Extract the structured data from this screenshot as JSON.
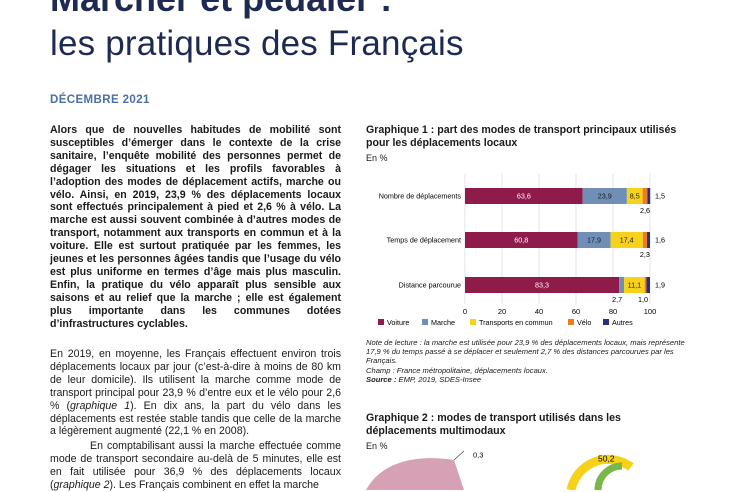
{
  "header": {
    "title_line1": "Marcher et pédaler :",
    "title_line2": "les pratiques des Français",
    "date": "DÉCEMBRE 2021"
  },
  "article": {
    "intro": "Alors que de nouvelles habitudes de mobilité sont susceptibles d’émerger dans le contexte de la crise sanitaire, l’enquête mobilité des personnes permet de dégager les situations et les profils favorables à l’adoption des modes de déplacement actifs, marche ou vélo. Ainsi, en 2019, 23,9 % des déplacements locaux sont effectués principalement à pied et 2,6 % à vélo. La marche est aussi souvent combinée à d’autres modes de transport, notamment aux transports en commun et à la voiture. Elle est surtout pratiquée par les femmes, les jeunes et les personnes âgées tandis que l’usage du vélo est plus uniforme en termes d’âge mais plus masculin. Enfin, la pratique du vélo apparaît plus sensible aux saisons et au relief que la marche ; elle est également plus importante dans les communes dotées d’infrastructures cyclables.",
    "p1_part1": "En 2019, en moyenne, les Français effectuent environ trois déplacements locaux par jour (c’est-à-dire à moins de 80 km de leur domicile). Ils utilisent la marche comme mode de transport principal pour 23,9 % d’entre eux et le vélo pour 2,6 % (",
    "p1_ref": "graphique 1",
    "p1_part2": "). En dix ans, la part du vélo dans les déplacements est restée stable tandis que celle de la marche a légèrement augmenté (22,1 % en 2008).",
    "p2_part1": "En comptabilisant aussi la marche effectuée comme mode de transport secondaire au-delà de 5 minutes, elle est en fait utilisée pour 36,9 % des déplacements locaux (",
    "p2_ref": "graphique 2",
    "p2_part2": "). Les Français combinent en effet la marche"
  },
  "chart_data": [
    {
      "type": "bar",
      "stacked": true,
      "orientation": "horizontal",
      "title": "Graphique 1 : part des modes de transport principaux utilisés pour les déplacements locaux",
      "unit": "En %",
      "categories": [
        "Nombre de déplacements",
        "Temps de déplacement",
        "Distance parcourue"
      ],
      "series": [
        {
          "name": "Voiture",
          "color": "#8e1b4a",
          "values": [
            63.6,
            60.8,
            83.3
          ],
          "labels": [
            "63,6",
            "60,8",
            "83,3"
          ]
        },
        {
          "name": "Marche",
          "color": "#6f8fb6",
          "values": [
            23.9,
            17.9,
            2.7
          ],
          "labels": [
            "23,9",
            "17,9",
            "2,7"
          ]
        },
        {
          "name": "Transports en commun",
          "color": "#f6d21b",
          "values": [
            8.5,
            17.4,
            11.1
          ],
          "labels": [
            "8,5",
            "17,4",
            "11,1"
          ]
        },
        {
          "name": "Vélo",
          "color": "#ee7d1f",
          "values": [
            2.6,
            2.3,
            1.0
          ],
          "labels": [
            "2,6",
            "2,3",
            "1,0"
          ]
        },
        {
          "name": "Autres",
          "color": "#2a2f7a",
          "values": [
            1.5,
            1.6,
            1.9
          ],
          "labels": [
            "1,5",
            "1,6",
            "1,9"
          ]
        }
      ],
      "xlim": [
        0,
        100
      ],
      "xticks": [
        0,
        20,
        40,
        60,
        80,
        100
      ],
      "grid": true,
      "legend": "bottom",
      "note_label": "Note de lecture",
      "note": " : la marche est utilisée pour 23,9 % des déplacements locaux, mais représente 17,9 % du temps passé à se déplacer et seulement 2,7 % des distances parcourues par les Français.",
      "field": "Champ : France métropolitaine, déplacements locaux.",
      "source_label": "Source :",
      "source": " EMP, 2019, SDES-Insee"
    },
    {
      "type": "pie",
      "title": "Graphique 2 : modes de transport utilisés dans les déplacements multimodaux",
      "unit": "En %",
      "visible_labels": [
        "0,3",
        "50,2"
      ]
    }
  ],
  "colors": {
    "title": "#1e2a52",
    "date": "#4a6fa5",
    "pie_visible": "#d7a1b5"
  }
}
